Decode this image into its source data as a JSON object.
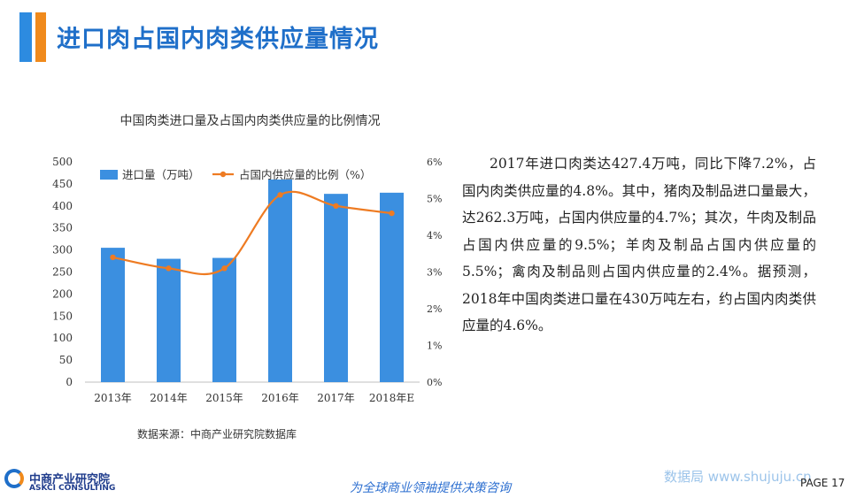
{
  "header": {
    "title": "进口肉占国内肉类供应量情况"
  },
  "chart_data": {
    "type": "bar+line",
    "title": "中国肉类进口量及占国内肉类供应量的比例情况",
    "categories": [
      "2013年",
      "2014年",
      "2015年",
      "2016年",
      "2017年",
      "2018年E"
    ],
    "series": [
      {
        "name": "进口量（万吨）",
        "type": "bar",
        "axis": "left",
        "color": "#3b8fe0",
        "values": [
          305,
          280,
          282,
          460,
          427.4,
          430
        ]
      },
      {
        "name": "占国内供应量的比例（%）",
        "type": "line",
        "axis": "right",
        "color": "#ee7b22",
        "values": [
          3.4,
          3.1,
          3.1,
          5.1,
          4.8,
          4.6
        ]
      }
    ],
    "y_left": {
      "min": 0,
      "max": 500,
      "ticks": [
        "0",
        "50",
        "100",
        "150",
        "200",
        "250",
        "300",
        "350",
        "400",
        "450",
        "500"
      ]
    },
    "y_right": {
      "min": 0,
      "max": 6,
      "ticks": [
        "0%",
        "1%",
        "2%",
        "3%",
        "4%",
        "5%",
        "6%"
      ]
    },
    "legend_position": "top",
    "grid": false
  },
  "source": "数据来源：中商产业研究院数据库",
  "paragraph": "2017年进口肉类达427.4万吨，同比下降7.2%，占国内肉类供应量的4.8%。其中，猪肉及制品进口量最大，达262.3万吨，占国内供应量的4.7%；其次，牛肉及制品占国内供应量的9.5%；羊肉及制品占国内供应量的5.5%；禽肉及制品则占国内供应量的2.4%。据预测，2018年中国肉类进口量在430万吨左右，约占国内肉类供应量的4.6%。",
  "footer": {
    "logo_cn": "中商产业研究院",
    "logo_en": "ASKCI CONSULTING",
    "slogan": "为全球商业领袖提供决策咨询",
    "watermark": "数据局  www.shujuju.cn",
    "page": "PAGE  17"
  }
}
